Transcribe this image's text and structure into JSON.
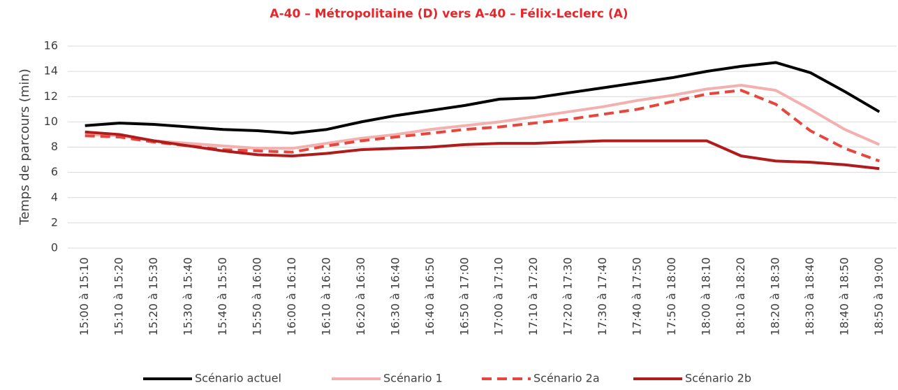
{
  "chart_data": {
    "type": "line",
    "title": "A-40 – Métropolitaine (D) vers A-40 – Félix-Leclerc (A)",
    "y_label": "Temps de parcours (min)",
    "categories": [
      "15:00 à 15:10",
      "15:10 à 15:20",
      "15:20 à 15:30",
      "15:30 à 15:40",
      "15:40 à 15:50",
      "15:50 à 16:00",
      "16:00 à 16:10",
      "16:10 à 16:20",
      "16:20 à 16:30",
      "16:30 à 16:40",
      "16:40 à 16:50",
      "16:50 à 17:00",
      "17:00 à 17:10",
      "17:10 à 17:20",
      "17:20 à 17:30",
      "17:30 à 17:40",
      "17:40 à 17:50",
      "17:50 à 18:00",
      "18:00 à 18:10",
      "18:10 à 18:20",
      "18:20 à 18:30",
      "18:30 à 18:40",
      "18:40 à 18:50",
      "18:50 à 19:00"
    ],
    "series": [
      {
        "name": "Scénario actuel",
        "color": "#000000",
        "dashed": false,
        "values": [
          9.7,
          9.9,
          9.8,
          9.6,
          9.4,
          9.3,
          9.1,
          9.4,
          10.0,
          10.5,
          10.9,
          11.3,
          11.8,
          11.9,
          12.3,
          12.7,
          13.1,
          13.5,
          14.0,
          14.4,
          14.7,
          13.9,
          12.4,
          10.8
        ]
      },
      {
        "name": "Scénario 1",
        "color": "#f4b0ae",
        "dashed": false,
        "values": [
          9.0,
          8.9,
          8.5,
          8.3,
          8.1,
          7.9,
          7.9,
          8.3,
          8.7,
          9.0,
          9.4,
          9.7,
          10.0,
          10.4,
          10.8,
          11.2,
          11.7,
          12.1,
          12.6,
          12.9,
          12.5,
          11.0,
          9.4,
          8.2
        ]
      },
      {
        "name": "Scénario 2a",
        "color": "#e8453c",
        "dashed": true,
        "values": [
          8.9,
          8.8,
          8.4,
          8.1,
          7.8,
          7.7,
          7.6,
          8.1,
          8.5,
          8.8,
          9.1,
          9.4,
          9.6,
          9.9,
          10.2,
          10.6,
          11.0,
          11.6,
          12.2,
          12.5,
          11.4,
          9.3,
          7.9,
          6.9
        ]
      },
      {
        "name": "Scénario 2b",
        "color": "#b01c1c",
        "dashed": false,
        "values": [
          9.2,
          9.0,
          8.5,
          8.1,
          7.7,
          7.4,
          7.3,
          7.5,
          7.8,
          7.9,
          8.0,
          8.2,
          8.3,
          8.3,
          8.4,
          8.5,
          8.5,
          8.5,
          8.5,
          7.3,
          6.9,
          6.8,
          6.6,
          6.3
        ]
      }
    ],
    "ylim": [
      0,
      16
    ],
    "yticks": [
      0,
      2,
      4,
      6,
      8,
      10,
      12,
      14,
      16
    ],
    "grid": true,
    "legend": "bottom"
  }
}
